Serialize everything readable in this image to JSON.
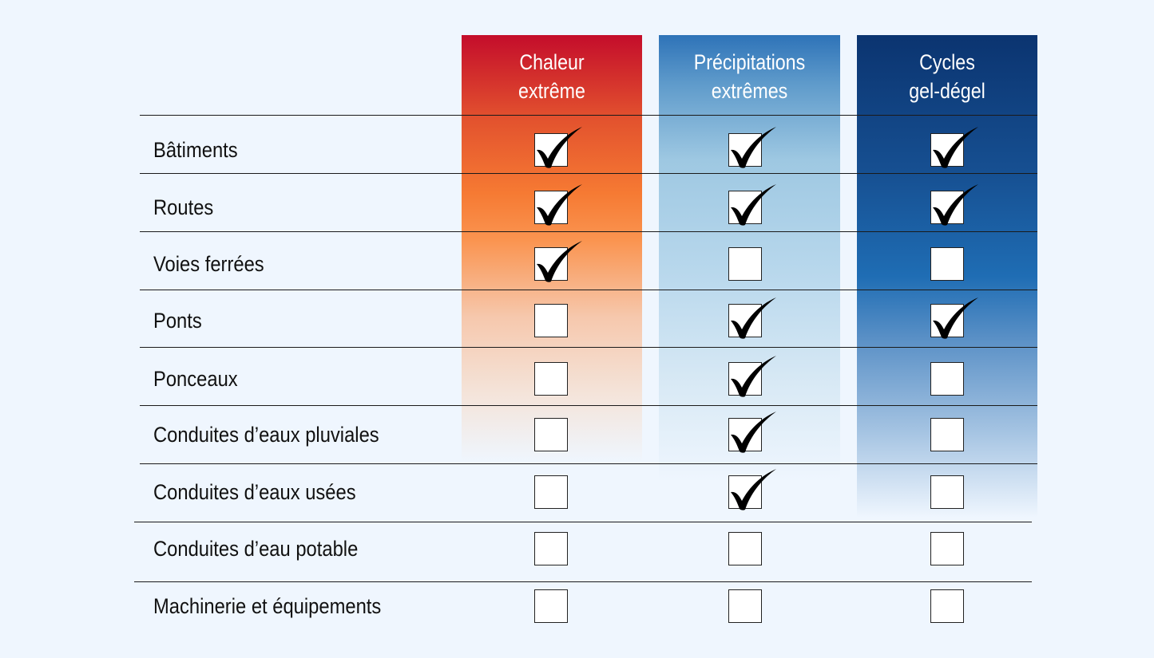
{
  "columns": [
    {
      "id": "heat",
      "line1": "Chaleur",
      "line2": "extrême",
      "color": "#c40d2b"
    },
    {
      "id": "precip",
      "line1": "Précipitations",
      "line2": "extrêmes",
      "color": "#2e73b8"
    },
    {
      "id": "freeze",
      "line1": "Cycles",
      "line2": "gel-dégel",
      "color": "#0b3470"
    }
  ],
  "rows": [
    {
      "label": "Bâtiments",
      "checks": [
        true,
        true,
        true
      ]
    },
    {
      "label": "Routes",
      "checks": [
        true,
        true,
        true
      ]
    },
    {
      "label": "Voies ferrées",
      "checks": [
        true,
        false,
        false
      ]
    },
    {
      "label": "Ponts",
      "checks": [
        false,
        true,
        true
      ]
    },
    {
      "label": "Ponceaux",
      "checks": [
        false,
        true,
        false
      ]
    },
    {
      "label": "Conduites d’eaux pluviales",
      "checks": [
        false,
        true,
        false
      ]
    },
    {
      "label": "Conduites d’eaux usées",
      "checks": [
        false,
        true,
        false
      ]
    },
    {
      "label": "Conduites d’eau potable",
      "checks": [
        false,
        false,
        false
      ]
    },
    {
      "label": "Machinerie et équipements",
      "checks": [
        false,
        false,
        false
      ]
    }
  ],
  "icons": {
    "checked": "checkmark-icon"
  }
}
